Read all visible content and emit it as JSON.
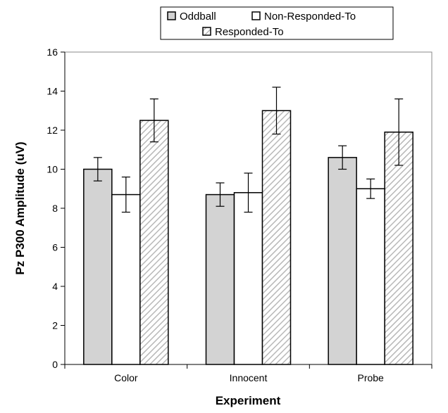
{
  "chart_data": {
    "type": "bar",
    "xlabel": "Experiment",
    "ylabel": "Pz P300 Amplitude (uV)",
    "ylim": [
      0,
      16
    ],
    "yticks": [
      0,
      2,
      4,
      6,
      8,
      10,
      12,
      14,
      16
    ],
    "categories": [
      "Color",
      "Innocent",
      "Probe"
    ],
    "legend_position": "top",
    "grid": false,
    "error_bars": true,
    "series": [
      {
        "name": "Oddball",
        "values": [
          10.0,
          8.7,
          10.6
        ],
        "errors": [
          0.6,
          0.6,
          0.6
        ],
        "color": "#d3d3d3",
        "pattern": "solid"
      },
      {
        "name": "Non-Responded-To",
        "values": [
          8.7,
          8.8,
          9.0
        ],
        "errors": [
          0.9,
          1.0,
          0.5
        ],
        "color": "#ffffff",
        "pattern": "solid"
      },
      {
        "name": "Responded-To",
        "values": [
          12.5,
          13.0,
          11.9
        ],
        "errors": [
          1.1,
          1.2,
          1.7
        ],
        "color": "#d3d3d3",
        "pattern": "diagonal-hatch"
      }
    ]
  }
}
